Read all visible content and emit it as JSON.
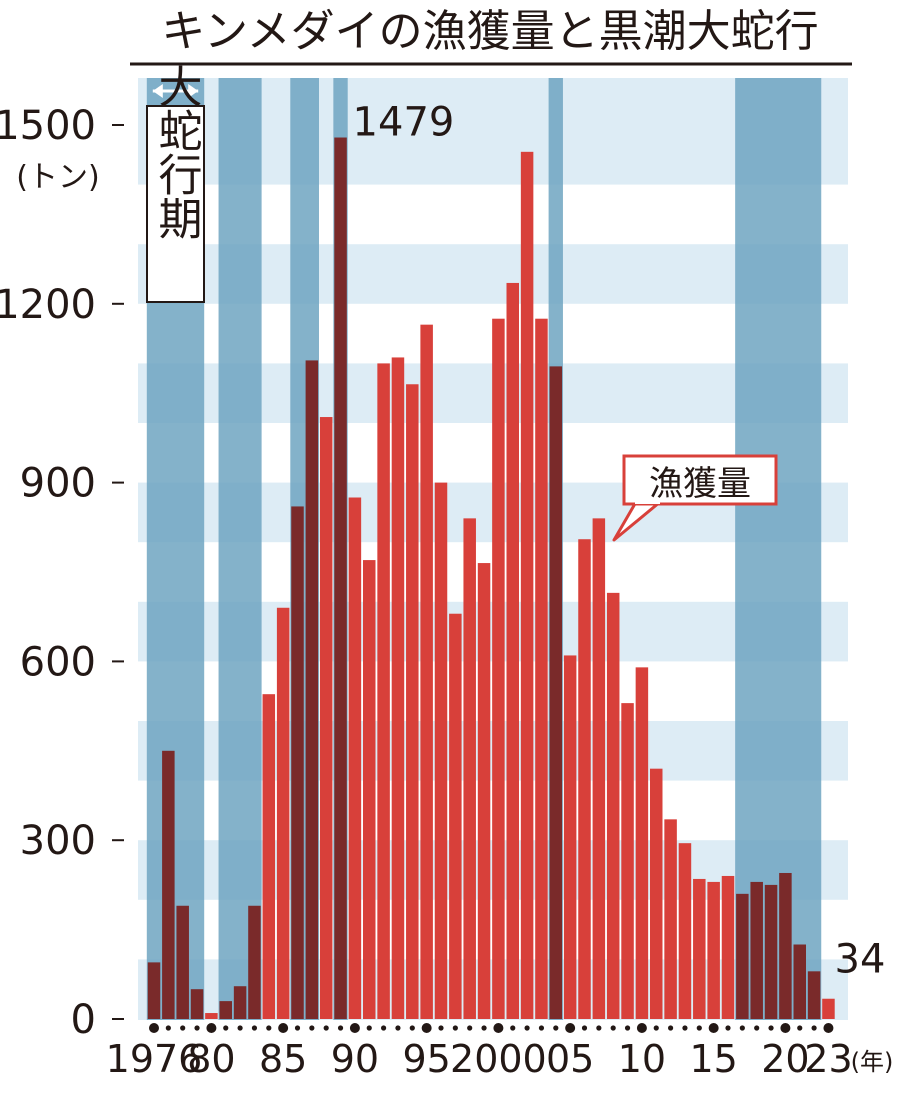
{
  "chart_data": {
    "type": "bar",
    "title": "キンメダイの漁獲量と黒潮大蛇行",
    "unit_label": "(トン)",
    "x_unit_label": "(年)",
    "ylim": [
      0,
      1500
    ],
    "yticks": [
      0,
      300,
      600,
      900,
      1200,
      1500
    ],
    "grid": true,
    "years": [
      1976,
      1977,
      1978,
      1979,
      1980,
      1981,
      1982,
      1983,
      1984,
      1985,
      1986,
      1987,
      1988,
      1989,
      1990,
      1991,
      1992,
      1993,
      1994,
      1995,
      1996,
      1997,
      1998,
      1999,
      2000,
      2001,
      2002,
      2003,
      2004,
      2005,
      2006,
      2007,
      2008,
      2009,
      2010,
      2011,
      2012,
      2013,
      2014,
      2015,
      2016,
      2017,
      2018,
      2019,
      2020,
      2021,
      2022,
      2023
    ],
    "x_tick_labels": [
      {
        "year": 1976,
        "label": "1976"
      },
      {
        "year": 1980,
        "label": "80"
      },
      {
        "year": 1985,
        "label": "85"
      },
      {
        "year": 1990,
        "label": "90"
      },
      {
        "year": 1995,
        "label": "95"
      },
      {
        "year": 2000,
        "label": "2000"
      },
      {
        "year": 2005,
        "label": "05"
      },
      {
        "year": 2010,
        "label": "10"
      },
      {
        "year": 2015,
        "label": "15"
      },
      {
        "year": 2020,
        "label": "20"
      },
      {
        "year": 2023,
        "label": "23"
      }
    ],
    "series": [
      {
        "name": "漁獲量",
        "values": [
          95,
          450,
          190,
          50,
          10,
          30,
          55,
          190,
          545,
          690,
          860,
          1105,
          1010,
          1479,
          875,
          770,
          1100,
          1110,
          1065,
          1165,
          900,
          680,
          840,
          765,
          1175,
          1235,
          1455,
          1175,
          1095,
          610,
          805,
          840,
          715,
          530,
          590,
          420,
          335,
          295,
          235,
          230,
          240,
          210,
          230,
          225,
          245,
          125,
          80,
          34
        ]
      }
    ],
    "meander_periods": [
      {
        "start": 1976,
        "end": 1980
      },
      {
        "start": 1981,
        "end": 1984
      },
      {
        "start": 1986,
        "end": 1988
      },
      {
        "start": 1989,
        "end": 1990
      },
      {
        "start": 2004,
        "end": 2005
      },
      {
        "start": 2017,
        "end": 2023
      }
    ],
    "legend_period_label": "大蛇行期",
    "callout_label": "漁獲量",
    "data_labels": [
      {
        "year": 1989,
        "text": "1479"
      },
      {
        "year": 2023,
        "text": "34"
      }
    ],
    "colors": {
      "bar": "#d8403a",
      "bar_in_meander": "#7a2a2a",
      "band": "#6fa5c1",
      "stripe_light": "#ddecf5",
      "stripe_white": "#ffffff",
      "text": "#231815"
    }
  }
}
